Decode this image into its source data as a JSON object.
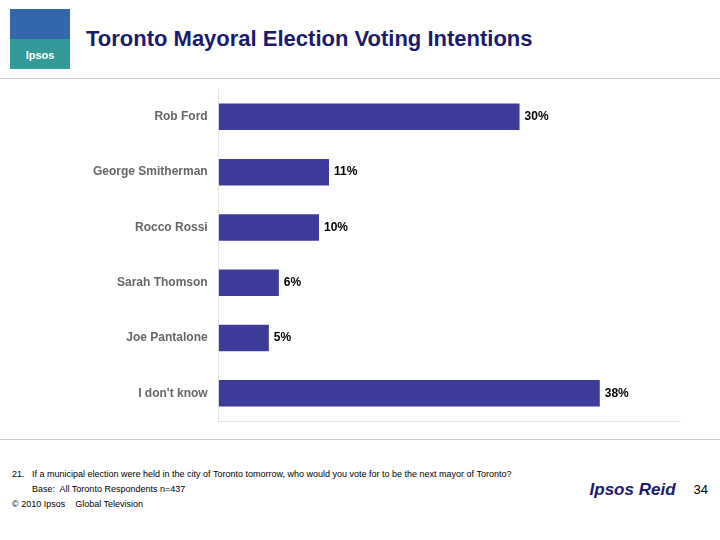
{
  "chart_data": {
    "type": "bar",
    "orientation": "horizontal",
    "title": "Toronto Mayoral Election Voting Intentions",
    "categories": [
      "Rob Ford",
      "George Smitherman",
      "Rocco Rossi",
      "Sarah Thomson",
      "Joe Pantalone",
      "I don't know"
    ],
    "values": [
      30,
      11,
      10,
      6,
      5,
      38
    ],
    "value_labels": [
      "30%",
      "11%",
      "10%",
      "6%",
      "5%",
      "38%"
    ],
    "data_labels": true,
    "color": "#3D3D99",
    "xlim": [
      0,
      46
    ],
    "grid": false,
    "tick_labels": "y",
    "annotations": [
      "Ipsos",
      "21.   If a municipal election were held in the city of Toronto tomorrow, who would you vote for to be the next mayor of Toronto?",
      "        Base:  All Toronto Respondents n=437",
      "© 2010 Ipsos    Global Television",
      "Ipsos Reid",
      "34"
    ]
  }
}
